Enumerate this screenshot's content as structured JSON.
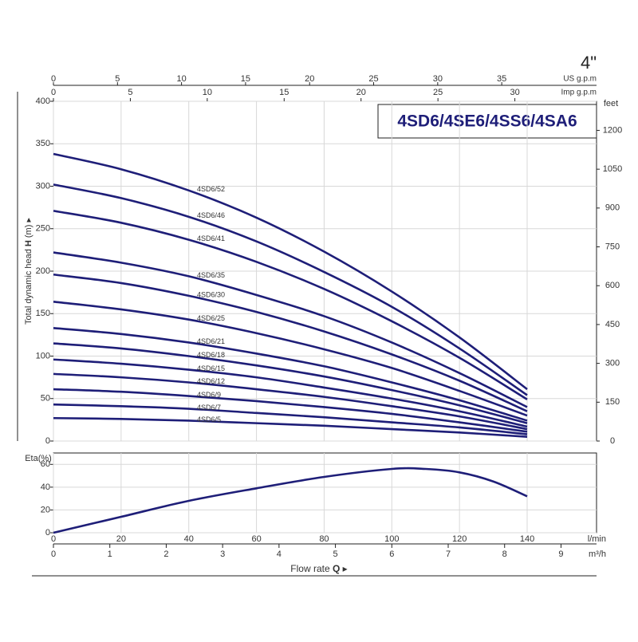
{
  "chart_data": [
    {
      "type": "line",
      "title": "4SD6/4SE6/4SS6/4SA6",
      "corner_label": "4\"",
      "y_label": "Total dynamic head",
      "y_symbol": "H",
      "y_unit": "(m)",
      "x": [
        0,
        20,
        40,
        60,
        80,
        100,
        120,
        140
      ],
      "xlim": [
        0,
        160.5
      ],
      "xticks": [
        0,
        20,
        40,
        60,
        80,
        100,
        120,
        140
      ],
      "ylim": [
        0,
        400
      ],
      "yticks": [
        0,
        50,
        100,
        150,
        200,
        250,
        300,
        350,
        400
      ],
      "grid": true,
      "top_axes": [
        {
          "label": "US g.p.m",
          "lim": [
            0,
            42.4
          ],
          "ticks": [
            0,
            5,
            10,
            15,
            20,
            25,
            30,
            35
          ]
        },
        {
          "label": "Imp g.p.m",
          "lim": [
            0,
            35.31
          ],
          "ticks": [
            0,
            5,
            10,
            15,
            20,
            25,
            30
          ]
        }
      ],
      "y2_label": "feet",
      "y2lim": [
        0,
        1312.3
      ],
      "y2ticks": [
        0,
        150,
        300,
        450,
        600,
        750,
        900,
        1050,
        1200
      ],
      "color": "#1e1e78",
      "series": [
        {
          "name": "4SD6/52",
          "values": [
            338,
            320,
            295,
            263,
            223,
            176,
            122,
            61
          ]
        },
        {
          "name": "4SD6/46",
          "values": [
            302,
            286,
            264,
            235,
            199,
            158,
            109,
            54
          ]
        },
        {
          "name": "4SD6/41",
          "values": [
            271,
            257,
            237,
            211,
            179,
            141,
            98,
            49
          ]
        },
        {
          "name": "4SD6/35",
          "values": [
            222,
            210,
            194,
            172,
            147,
            116,
            80,
            40
          ]
        },
        {
          "name": "4SD6/30",
          "values": [
            196,
            186,
            171,
            152,
            129,
            102,
            71,
            35
          ]
        },
        {
          "name": "4SD6/25",
          "values": [
            164,
            155,
            143,
            127,
            108,
            86,
            59,
            30
          ]
        },
        {
          "name": "4SD6/21",
          "values": [
            133,
            126,
            116,
            103,
            88,
            69,
            48,
            24
          ]
        },
        {
          "name": "4SD6/18",
          "values": [
            115,
            109,
            100,
            89,
            76,
            60,
            42,
            21
          ]
        },
        {
          "name": "4SD6/15",
          "values": [
            96,
            91,
            84,
            75,
            63,
            50,
            35,
            17
          ]
        },
        {
          "name": "4SD6/12",
          "values": [
            79,
            75,
            69,
            61,
            52,
            41,
            29,
            14
          ]
        },
        {
          "name": "4SD6/9",
          "values": [
            61,
            58,
            53,
            47,
            40,
            32,
            22,
            11
          ]
        },
        {
          "name": "4SD6/7",
          "values": [
            43,
            41,
            38,
            33,
            28,
            22,
            16,
            8
          ]
        },
        {
          "name": "4SD6/5",
          "values": [
            27,
            26,
            24,
            21,
            18,
            14,
            10,
            5
          ]
        }
      ]
    },
    {
      "type": "line",
      "y_label": "Eta(%)",
      "x": [
        0,
        20,
        40,
        60,
        80,
        100,
        110,
        120,
        130,
        140
      ],
      "values": [
        0,
        14,
        28,
        39,
        49,
        56,
        56,
        53,
        45,
        32
      ],
      "color": "#1e1e78",
      "xlim": [
        0,
        160.5
      ],
      "xticks": [
        0,
        20,
        40,
        60,
        80,
        100,
        120,
        140
      ],
      "x_unit": "l/min",
      "ylim": [
        0,
        70
      ],
      "yticks": [
        0,
        20,
        40,
        60
      ],
      "grid": true,
      "x2lim": [
        0,
        9.63
      ],
      "x2ticks": [
        0,
        1,
        2,
        3,
        4,
        5,
        6,
        7,
        8,
        9
      ],
      "x2_unit": "m³/h",
      "x_label": "Flow rate",
      "x_symbol": "Q"
    }
  ]
}
